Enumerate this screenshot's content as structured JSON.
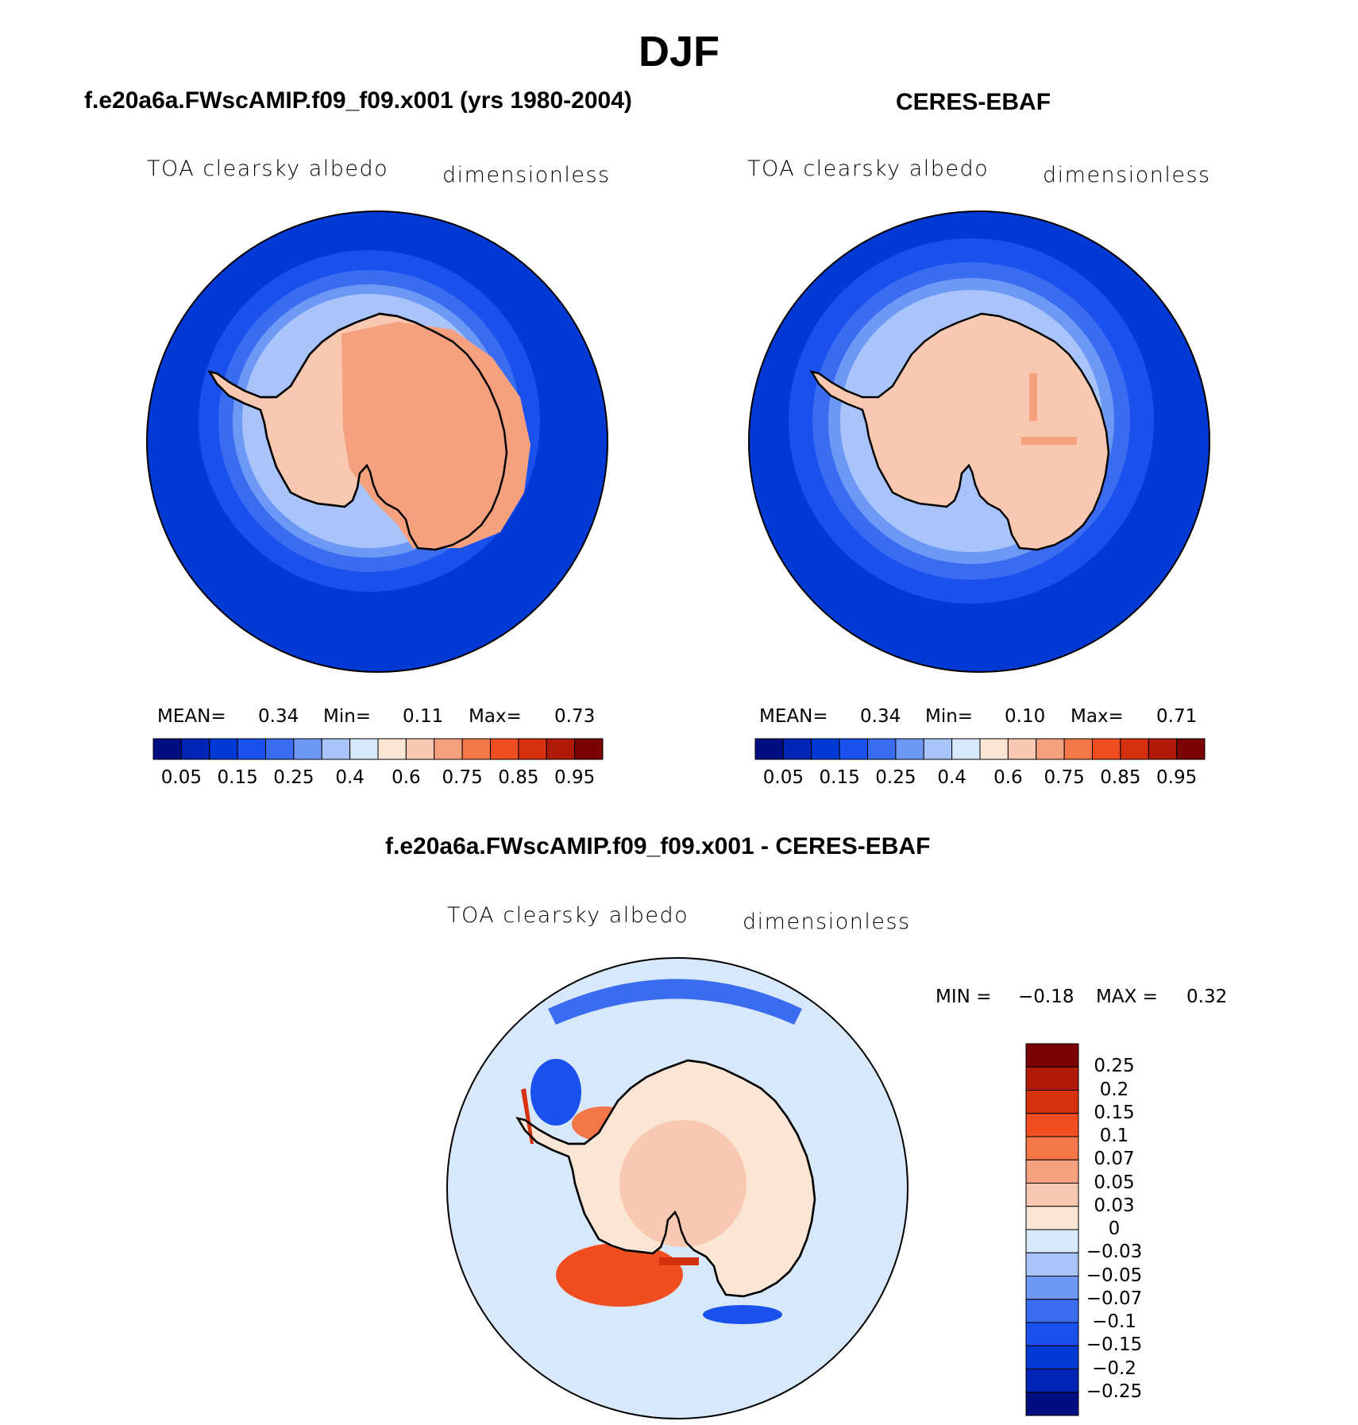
{
  "figure": {
    "title": "DJF",
    "field_label": "TOA clearsky albedo",
    "units": "dimensionless"
  },
  "panels": [
    {
      "id": "model",
      "title": "f.e20a6a.FWscAMIP.f09_f09.x001 (yrs 1980-2004)",
      "stats": {
        "mean_label": "MEAN=",
        "mean": "0.34",
        "min_label": "Min=",
        "min": "0.11",
        "max_label": "Max=",
        "max": "0.73"
      }
    },
    {
      "id": "obs",
      "title": "CERES-EBAF",
      "stats": {
        "mean_label": "MEAN=",
        "mean": "0.34",
        "min_label": "Min=",
        "min": "0.10",
        "max_label": "Max=",
        "max": "0.71"
      }
    },
    {
      "id": "diff",
      "title": "f.e20a6a.FWscAMIP.f09_f09.x001 - CERES-EBAF",
      "stats": {
        "min_label": "MIN =",
        "min": "−0.18",
        "max_label": "MAX =",
        "max": "0.32"
      }
    }
  ],
  "colorbar_abs": {
    "colors": [
      "#000e80",
      "#0024b4",
      "#0039d4",
      "#1a51ee",
      "#3a6cf2",
      "#6e98f6",
      "#a8c4fa",
      "#d8e8fb",
      "#fbe6d6",
      "#f8c8b0",
      "#f5a07e",
      "#f4774a",
      "#f04d20",
      "#d6300e",
      "#b01a08",
      "#7a0404"
    ],
    "ticks": [
      "0.05",
      "0.15",
      "0.25",
      "0.4",
      "0.6",
      "0.75",
      "0.85",
      "0.95"
    ]
  },
  "colorbar_diff": {
    "colors": [
      "#7a0404",
      "#b01a08",
      "#d6300e",
      "#f04d20",
      "#f4774a",
      "#f5a07e",
      "#f8c8b0",
      "#fbe6d6",
      "#d8e8fb",
      "#a8c4fa",
      "#6e98f6",
      "#3a6cf2",
      "#1a51ee",
      "#0039d4",
      "#0024b4",
      "#000e80"
    ],
    "ticks": [
      "0.25",
      "0.2",
      "0.15",
      "0.1",
      "0.07",
      "0.05",
      "0.03",
      "0",
      "−0.03",
      "−0.05",
      "−0.07",
      "−0.1",
      "−0.15",
      "−0.2",
      "−0.25"
    ]
  }
}
